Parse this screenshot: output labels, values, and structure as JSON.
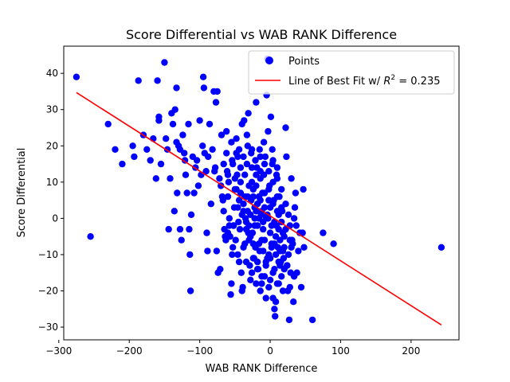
{
  "chart_data": {
    "type": "scatter",
    "title": "Score Differential vs WAB RANK Difference",
    "xlabel": "WAB RANK Difference",
    "ylabel": "Score Differential",
    "xlim": [
      -293,
      268
    ],
    "ylim": [
      -33.5,
      47.5
    ],
    "x_ticks": [
      -300,
      -200,
      -100,
      0,
      100,
      200
    ],
    "x_tick_labels": [
      "−300",
      "−200",
      "−100",
      "0",
      "100",
      "200"
    ],
    "y_ticks": [
      -30,
      -20,
      -10,
      0,
      10,
      20,
      30,
      40
    ],
    "y_tick_labels": [
      "−30",
      "−20",
      "−10",
      "0",
      "10",
      "20",
      "30",
      "40"
    ],
    "grid": false,
    "legend_position": "upper right",
    "legend": {
      "points_label": "Points",
      "line_label_prefix": "Line of Best Fit w/ ",
      "line_label_r2": "R",
      "line_label_suffix": " = 0.235"
    },
    "colors": {
      "points": "#0000ff",
      "fit_line": "#ff0000"
    },
    "fit_line": {
      "x": [
        -275,
        243
      ],
      "y": [
        34.7,
        -29.4
      ]
    },
    "series": [
      {
        "name": "Points",
        "points": [
          [
            -275,
            39
          ],
          [
            -255,
            -5
          ],
          [
            -230,
            26
          ],
          [
            -220,
            19
          ],
          [
            -210,
            15
          ],
          [
            -195,
            20
          ],
          [
            -193,
            17
          ],
          [
            -187,
            38
          ],
          [
            -180,
            23
          ],
          [
            -175,
            19
          ],
          [
            -170,
            16
          ],
          [
            -166,
            22
          ],
          [
            -162,
            11
          ],
          [
            -160,
            38
          ],
          [
            -158,
            27
          ],
          [
            -158,
            28
          ],
          [
            -155,
            15
          ],
          [
            -150,
            43
          ],
          [
            -148,
            22
          ],
          [
            -146,
            19
          ],
          [
            -144,
            -3
          ],
          [
            -142,
            11
          ],
          [
            -140,
            29
          ],
          [
            -138,
            26
          ],
          [
            -136,
            2
          ],
          [
            -135,
            30
          ],
          [
            -133,
            36
          ],
          [
            -133,
            21
          ],
          [
            -132,
            7
          ],
          [
            -130,
            20
          ],
          [
            -128,
            19
          ],
          [
            -128,
            -3
          ],
          [
            -126,
            -6
          ],
          [
            -124,
            23
          ],
          [
            -122,
            18
          ],
          [
            -121,
            16
          ],
          [
            -120,
            12
          ],
          [
            -118,
            7
          ],
          [
            -116,
            26
          ],
          [
            -115,
            -3
          ],
          [
            -114,
            -10
          ],
          [
            -113,
            -20
          ],
          [
            -112,
            1
          ],
          [
            -110,
            17
          ],
          [
            -108,
            7
          ],
          [
            -106,
            14
          ],
          [
            -104,
            16
          ],
          [
            -102,
            9
          ],
          [
            -100,
            27
          ],
          [
            -98,
            12
          ],
          [
            -96,
            20
          ],
          [
            -95,
            39
          ],
          [
            -94,
            36
          ],
          [
            -93,
            18
          ],
          [
            -91,
            13
          ],
          [
            -90,
            -4
          ],
          [
            -89,
            -9
          ],
          [
            -88,
            17
          ],
          [
            -86,
            26
          ],
          [
            -84,
            4
          ],
          [
            -82,
            19
          ],
          [
            -80,
            35
          ],
          [
            -79,
            13
          ],
          [
            -78,
            14
          ],
          [
            -77,
            32
          ],
          [
            -76,
            -9
          ],
          [
            -75,
            35
          ],
          [
            -74,
            -15
          ],
          [
            -72,
            11
          ],
          [
            -71,
            -14
          ],
          [
            -70,
            9
          ],
          [
            -69,
            23
          ],
          [
            -68,
            6
          ],
          [
            -67,
            5
          ],
          [
            -66,
            2
          ],
          [
            -65,
            -3
          ],
          [
            -64,
            -5
          ],
          [
            -63,
            -6
          ],
          [
            -62,
            18
          ],
          [
            -61,
            13
          ],
          [
            -60,
            6
          ],
          [
            -59,
            10
          ],
          [
            -58,
            -2
          ],
          [
            -57,
            -5
          ],
          [
            -56,
            -21
          ],
          [
            -55,
            -18
          ],
          [
            -54,
            -10
          ],
          [
            -53,
            15
          ],
          [
            -52,
            -2
          ],
          [
            -51,
            3
          ],
          [
            -50,
            11
          ],
          [
            -49,
            -6
          ],
          [
            -48,
            8
          ],
          [
            -47,
            12
          ],
          [
            -46,
            17
          ],
          [
            -45,
            -1
          ],
          [
            -44,
            -12
          ],
          [
            -43,
            -3
          ],
          [
            -42,
            7
          ],
          [
            -41,
            -15
          ],
          [
            -40,
            -20
          ],
          [
            -39,
            -19
          ],
          [
            -38,
            4
          ],
          [
            -37,
            27
          ],
          [
            -36,
            -7
          ],
          [
            -35,
            0
          ],
          [
            -34,
            -12
          ],
          [
            -33,
            15
          ],
          [
            -32,
            2
          ],
          [
            -31,
            29
          ],
          [
            -30,
            -6
          ],
          [
            -29,
            -13
          ],
          [
            -28,
            -17
          ],
          [
            -27,
            5
          ],
          [
            -26,
            19
          ],
          [
            -25,
            -4
          ],
          [
            -24,
            8
          ],
          [
            -23,
            -11
          ],
          [
            -22,
            3
          ],
          [
            -21,
            -8
          ],
          [
            -20,
            32
          ],
          [
            -19,
            14
          ],
          [
            -18,
            -2
          ],
          [
            -17,
            -14
          ],
          [
            -16,
            6
          ],
          [
            -15,
            -9
          ],
          [
            -14,
            11
          ],
          [
            -13,
            1
          ],
          [
            -12,
            -16
          ],
          [
            -11,
            7
          ],
          [
            -10,
            -3
          ],
          [
            -9,
            12
          ],
          [
            -8,
            -6
          ],
          [
            -7,
            17
          ],
          [
            -6,
            -12
          ],
          [
            -5,
            34
          ],
          [
            -4,
            44
          ],
          [
            -3,
            0
          ],
          [
            -2,
            -10
          ],
          [
            -1,
            9
          ],
          [
            0,
            -4
          ],
          [
            1,
            28
          ],
          [
            2,
            -7
          ],
          [
            3,
            15
          ],
          [
            4,
            -15
          ],
          [
            5,
            5
          ],
          [
            6,
            -25
          ],
          [
            7,
            -27
          ],
          [
            8,
            -23
          ],
          [
            9,
            -2
          ],
          [
            10,
            11
          ],
          [
            11,
            -8
          ],
          [
            12,
            -18
          ],
          [
            13,
            6
          ],
          [
            14,
            -9
          ],
          [
            15,
            -12
          ],
          [
            16,
            8
          ],
          [
            17,
            2
          ],
          [
            18,
            -4
          ],
          [
            19,
            -11
          ],
          [
            20,
            -5
          ],
          [
            22,
            25
          ],
          [
            23,
            17
          ],
          [
            24,
            -13
          ],
          [
            25,
            -20
          ],
          [
            26,
            1
          ],
          [
            27,
            -28
          ],
          [
            28,
            -19
          ],
          [
            29,
            -15
          ],
          [
            30,
            11
          ],
          [
            31,
            -6
          ],
          [
            32,
            -7
          ],
          [
            33,
            -23
          ],
          [
            34,
            -16
          ],
          [
            35,
            3
          ],
          [
            36,
            7
          ],
          [
            37,
            -2
          ],
          [
            38,
            -15
          ],
          [
            40,
            -9
          ],
          [
            42,
            -4
          ],
          [
            44,
            -19
          ],
          [
            46,
            -4
          ],
          [
            47,
            8
          ],
          [
            48,
            -8
          ],
          [
            60,
            -28
          ],
          [
            75,
            -4
          ],
          [
            90,
            -7
          ],
          [
            243,
            -8
          ],
          [
            -62,
            24
          ],
          [
            -55,
            21
          ],
          [
            -48,
            22
          ],
          [
            -40,
            26
          ],
          [
            -33,
            23
          ],
          [
            -27,
            18
          ],
          [
            -21,
            16
          ],
          [
            -15,
            19
          ],
          [
            -9,
            21
          ],
          [
            -3,
            24
          ],
          [
            3,
            19
          ],
          [
            9,
            12
          ],
          [
            -60,
            -4
          ],
          [
            -53,
            -8
          ],
          [
            -46,
            -10
          ],
          [
            -38,
            -8
          ],
          [
            -31,
            -4
          ],
          [
            -24,
            -7
          ],
          [
            -18,
            -12
          ],
          [
            -12,
            -6
          ],
          [
            -6,
            -13
          ],
          [
            0,
            -17
          ],
          [
            6,
            -14
          ],
          [
            12,
            -12
          ],
          [
            18,
            -9
          ],
          [
            -42,
            14
          ],
          [
            -36,
            12
          ],
          [
            -30,
            9
          ],
          [
            -24,
            6
          ],
          [
            -18,
            4
          ],
          [
            -12,
            2
          ],
          [
            -6,
            0
          ],
          [
            0,
            3
          ],
          [
            6,
            -1
          ],
          [
            12,
            -3
          ],
          [
            -34,
            -1
          ],
          [
            -28,
            1
          ],
          [
            -22,
            -2
          ],
          [
            -16,
            0
          ],
          [
            -10,
            -1
          ],
          [
            -4,
            1
          ],
          [
            2,
            -2
          ],
          [
            8,
            -5
          ],
          [
            14,
            -6
          ],
          [
            20,
            -8
          ],
          [
            -20,
            9
          ],
          [
            -14,
            13
          ],
          [
            -8,
            7
          ],
          [
            -2,
            5
          ],
          [
            4,
            4
          ],
          [
            10,
            6
          ],
          [
            16,
            3
          ],
          [
            22,
            -3
          ],
          [
            28,
            -6
          ],
          [
            34,
            0
          ],
          [
            -26,
            -15
          ],
          [
            -20,
            -18
          ],
          [
            -14,
            -20
          ],
          [
            -8,
            -16
          ],
          [
            -2,
            -19
          ],
          [
            4,
            -22
          ],
          [
            10,
            -18
          ],
          [
            16,
            -16
          ],
          [
            -44,
            19
          ],
          [
            -38,
            17
          ],
          [
            -32,
            20
          ],
          [
            -26,
            14
          ],
          [
            -20,
            12
          ],
          [
            -14,
            17
          ],
          [
            -8,
            15
          ],
          [
            -2,
            13
          ],
          [
            4,
            16
          ],
          [
            10,
            14
          ],
          [
            -58,
            0
          ],
          [
            -52,
            -2
          ],
          [
            -46,
            3
          ],
          [
            -40,
            1
          ],
          [
            -34,
            -3
          ],
          [
            -28,
            -5
          ],
          [
            -22,
            0
          ],
          [
            -16,
            -7
          ],
          [
            -10,
            -9
          ],
          [
            -4,
            -11
          ],
          [
            2,
            -8
          ],
          [
            8,
            -10
          ],
          [
            14,
            -13
          ],
          [
            20,
            -14
          ],
          [
            26,
            -10
          ],
          [
            -50,
            8
          ],
          [
            -44,
            5
          ],
          [
            -38,
            2
          ],
          [
            -32,
            6
          ],
          [
            -26,
            10
          ],
          [
            -20,
            2
          ],
          [
            -14,
            5
          ],
          [
            -8,
            3
          ],
          [
            -2,
            8
          ],
          [
            4,
            10
          ],
          [
            10,
            2
          ],
          [
            16,
            -1
          ],
          [
            22,
            4
          ],
          [
            28,
            -2
          ],
          [
            -66,
            15
          ],
          [
            -60,
            12
          ],
          [
            -54,
            16
          ],
          [
            -48,
            18
          ],
          [
            -42,
            10
          ],
          [
            -36,
            6
          ],
          [
            -30,
            -2
          ],
          [
            -24,
            -11
          ],
          [
            -18,
            -14
          ],
          [
            -12,
            -18
          ],
          [
            -6,
            -22
          ],
          [
            0,
            -11
          ],
          [
            6,
            -7
          ],
          [
            12,
            1
          ],
          [
            18,
            -20
          ],
          [
            24,
            -13
          ],
          [
            30,
            -8
          ]
        ]
      }
    ]
  }
}
